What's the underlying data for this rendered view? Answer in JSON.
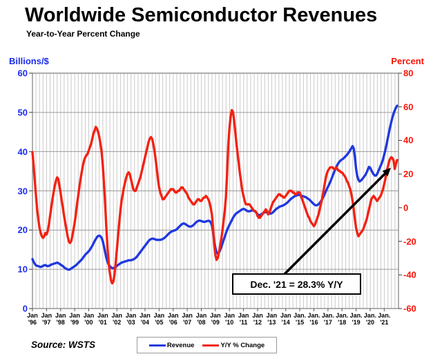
{
  "header": {
    "title": "Worldwide Semiconductor Revenues",
    "subtitle": "Year-to-Year Percent Change"
  },
  "left_axis": {
    "label": "Billions/$",
    "color": "#1a2bee",
    "ticks": [
      60,
      50,
      40,
      30,
      20,
      10,
      0
    ]
  },
  "right_axis": {
    "label": "Percent",
    "color": "#fb1407",
    "ticks": [
      80,
      60,
      40,
      20,
      0,
      -20,
      -40,
      -60
    ]
  },
  "x_axis": {
    "months": [
      "Jan",
      "Jan",
      "Jan",
      "Jan",
      "Jan",
      "Jan",
      "Jan",
      "Jan",
      "Jan",
      "Jan",
      "Jan",
      "Jan",
      "Jan",
      "Jan",
      "Jan",
      "Jan",
      "Jan",
      "Jan",
      "Jan",
      "Jan.",
      "Jan.",
      "Jan.",
      "Jan.",
      "Jan.",
      "Jan.",
      "Jan."
    ],
    "years": [
      "'96",
      "'97",
      "'98",
      "'99",
      "'00",
      "'01",
      "'02",
      "'03",
      "'04",
      "'05",
      "'06",
      "'07",
      "'08",
      "'09",
      "'10",
      "'11",
      "'12",
      "'13",
      "'14",
      "'15",
      "'16",
      "'17",
      "'18",
      "'19",
      "'20",
      "'21"
    ]
  },
  "legend": {
    "items": [
      {
        "label": "Revenue",
        "color": "#2038e0"
      },
      {
        "label": "Y/Y % Change",
        "color": "#f32112"
      }
    ]
  },
  "annotation": {
    "text": "Dec. '21 = 28.3% Y/Y"
  },
  "source": {
    "text": "Source: WSTS"
  },
  "chart_data": {
    "type": "line",
    "title": "Worldwide Semiconductor Revenues",
    "subtitle": "Year-to-Year Percent Change",
    "frequency": "monthly",
    "x_start": "1996-01",
    "x_end": "2021-12",
    "left_axis": {
      "label": "Billions/$",
      "range": [
        0,
        60
      ],
      "ticks": [
        0,
        10,
        20,
        30,
        40,
        50,
        60
      ]
    },
    "right_axis": {
      "label": "Percent",
      "range": [
        -60,
        80
      ],
      "ticks": [
        -60,
        -40,
        -20,
        0,
        20,
        40,
        60,
        80
      ]
    },
    "grid": {
      "vertical": "quarterly",
      "horizontal": "every 10 (left axis)"
    },
    "legend_position": "bottom-center",
    "annotation": {
      "text": "Dec. '21 = 28.3% Y/Y",
      "points_to": "Dec 2021 on Y/Y % Change line"
    },
    "series": [
      {
        "name": "Revenue",
        "axis": "left",
        "unit": "billions of dollars",
        "color": "#2038e0",
        "values": [
          12.6,
          11.9,
          11.4,
          11.0,
          10.9,
          10.8,
          10.7,
          10.6,
          10.7,
          10.9,
          11.0,
          11.1,
          10.9,
          10.8,
          10.9,
          11.0,
          11.2,
          11.3,
          11.4,
          11.5,
          11.6,
          11.7,
          11.6,
          11.4,
          11.2,
          11.0,
          10.8,
          10.5,
          10.3,
          10.1,
          10.0,
          9.9,
          10.0,
          10.2,
          10.4,
          10.6,
          10.8,
          11.0,
          11.3,
          11.6,
          11.9,
          12.2,
          12.5,
          12.9,
          13.3,
          13.7,
          14.0,
          14.3,
          14.6,
          15.0,
          15.5,
          16.0,
          16.6,
          17.2,
          17.7,
          18.2,
          18.5,
          18.6,
          18.4,
          18.0,
          17.1,
          15.8,
          14.3,
          12.9,
          11.9,
          11.2,
          10.8,
          10.5,
          10.3,
          10.3,
          10.4,
          10.6,
          10.9,
          11.1,
          11.3,
          11.5,
          11.7,
          11.8,
          11.9,
          12.0,
          12.1,
          12.2,
          12.3,
          12.3,
          12.3,
          12.4,
          12.5,
          12.7,
          12.9,
          13.2,
          13.6,
          14.0,
          14.4,
          14.8,
          15.2,
          15.6,
          16.0,
          16.4,
          16.8,
          17.2,
          17.5,
          17.7,
          17.8,
          17.8,
          17.7,
          17.6,
          17.5,
          17.5,
          17.5,
          17.5,
          17.6,
          17.7,
          17.9,
          18.1,
          18.4,
          18.7,
          19.0,
          19.3,
          19.5,
          19.7,
          19.8,
          19.9,
          20.0,
          20.2,
          20.5,
          20.8,
          21.1,
          21.4,
          21.6,
          21.7,
          21.6,
          21.4,
          21.2,
          21.0,
          20.9,
          20.9,
          21.0,
          21.2,
          21.5,
          21.8,
          22.1,
          22.3,
          22.4,
          22.4,
          22.3,
          22.2,
          22.1,
          22.1,
          22.2,
          22.3,
          22.4,
          22.3,
          22.0,
          21.2,
          19.5,
          17.2,
          15.5,
          14.4,
          14.0,
          14.2,
          14.8,
          15.6,
          16.5,
          17.4,
          18.3,
          19.2,
          20.0,
          20.7,
          21.3,
          21.9,
          22.5,
          23.1,
          23.6,
          24.0,
          24.3,
          24.5,
          24.7,
          24.9,
          25.1,
          25.3,
          25.4,
          25.3,
          25.1,
          24.9,
          24.8,
          24.8,
          24.9,
          25.0,
          25.0,
          24.9,
          24.7,
          24.4,
          24.0,
          23.8,
          23.8,
          24.0,
          24.2,
          24.4,
          24.5,
          24.6,
          24.5,
          24.3,
          24.2,
          24.2,
          24.3,
          24.5,
          24.8,
          25.1,
          25.4,
          25.6,
          25.8,
          26.0,
          26.1,
          26.2,
          26.3,
          26.5,
          26.7,
          26.9,
          27.2,
          27.5,
          27.8,
          28.1,
          28.3,
          28.5,
          28.7,
          28.8,
          28.9,
          29.0,
          28.9,
          28.8,
          28.7,
          28.6,
          28.5,
          28.4,
          28.2,
          28.0,
          27.8,
          27.5,
          27.2,
          26.9,
          26.6,
          26.4,
          26.3,
          26.4,
          26.6,
          26.9,
          27.3,
          27.8,
          28.4,
          29.0,
          29.7,
          30.4,
          31.0,
          31.6,
          32.3,
          33.0,
          33.8,
          34.6,
          35.3,
          36.0,
          36.6,
          37.1,
          37.5,
          37.8,
          38.0,
          38.2,
          38.5,
          38.8,
          39.1,
          39.5,
          39.9,
          40.4,
          40.9,
          41.4,
          40.8,
          38.6,
          35.6,
          33.8,
          32.8,
          32.4,
          32.6,
          32.9,
          33.3,
          33.7,
          34.1,
          34.7,
          35.4,
          36.1,
          35.9,
          35.3,
          34.7,
          34.2,
          33.9,
          33.9,
          34.3,
          35.0,
          35.7,
          36.4,
          37.1,
          38.0,
          39.2,
          40.4,
          41.8,
          43.3,
          44.8,
          46.2,
          47.5,
          48.7,
          49.7,
          50.5,
          51.2,
          51.7
        ]
      },
      {
        "name": "Y/Y % Change",
        "axis": "right",
        "unit": "percent",
        "color": "#f32112",
        "values": [
          33,
          25,
          16,
          7,
          -1,
          -7,
          -12,
          -15,
          -17,
          -18,
          -17,
          -15,
          -16,
          -14,
          -10,
          -5,
          0,
          5,
          9,
          13,
          16,
          18,
          17,
          13,
          9,
          4,
          0,
          -5,
          -9,
          -13,
          -17,
          -20,
          -21,
          -20,
          -17,
          -13,
          -9,
          -4,
          2,
          7,
          12,
          17,
          21,
          25,
          28,
          30,
          31,
          32,
          34,
          36,
          38,
          41,
          44,
          46,
          48,
          47,
          45,
          42,
          38,
          33,
          25,
          14,
          2,
          -12,
          -24,
          -33,
          -39,
          -43,
          -45,
          -44,
          -40,
          -33,
          -25,
          -17,
          -9,
          -2,
          4,
          8,
          12,
          15,
          18,
          20,
          21,
          20,
          17,
          14,
          11,
          10,
          10,
          12,
          14,
          16,
          18,
          21,
          24,
          27,
          30,
          33,
          36,
          39,
          41,
          42,
          41,
          38,
          34,
          29,
          23,
          17,
          12,
          9,
          7,
          5,
          5,
          6,
          7,
          8,
          9,
          10,
          11,
          11,
          11,
          10,
          9,
          9,
          10,
          10,
          11,
          12,
          12,
          11,
          10,
          9,
          8,
          6,
          5,
          4,
          3,
          2,
          2,
          3,
          4,
          5,
          5,
          4,
          4,
          5,
          6,
          6,
          7,
          6,
          5,
          3,
          0,
          -4,
          -12,
          -22,
          -28,
          -31,
          -30,
          -27,
          -23,
          -19,
          -14,
          -8,
          -2,
          6,
          20,
          37,
          47,
          54,
          58,
          57,
          52,
          45,
          38,
          32,
          26,
          20,
          15,
          10,
          7,
          4,
          2,
          2,
          2,
          2,
          1,
          0,
          -1,
          -2,
          -2,
          -3,
          -5,
          -6,
          -6,
          -5,
          -4,
          -3,
          -2,
          -1,
          -2,
          -4,
          -3,
          -1,
          1,
          3,
          4,
          5,
          6,
          7,
          8,
          8,
          7,
          7,
          6,
          6,
          7,
          8,
          9,
          10,
          10,
          10,
          9,
          9,
          8,
          8,
          9,
          9,
          9,
          7,
          5,
          3,
          1,
          -1,
          -3,
          -5,
          -6,
          -8,
          -9,
          -10,
          -11,
          -10,
          -8,
          -6,
          -4,
          -1,
          2,
          5,
          9,
          13,
          17,
          20,
          22,
          23,
          24,
          24,
          24,
          23,
          23,
          24,
          23,
          22,
          22,
          21,
          21,
          20,
          19,
          18,
          16,
          15,
          13,
          11,
          8,
          4,
          -1,
          -7,
          -12,
          -15,
          -17,
          -16,
          -15,
          -14,
          -13,
          -11,
          -9,
          -7,
          -4,
          -1,
          2,
          5,
          6,
          7,
          6,
          5,
          4,
          5,
          6,
          7,
          9,
          11,
          14,
          17,
          21,
          24,
          27,
          29,
          30,
          29.5,
          28,
          23,
          26,
          28.3
        ]
      }
    ]
  }
}
